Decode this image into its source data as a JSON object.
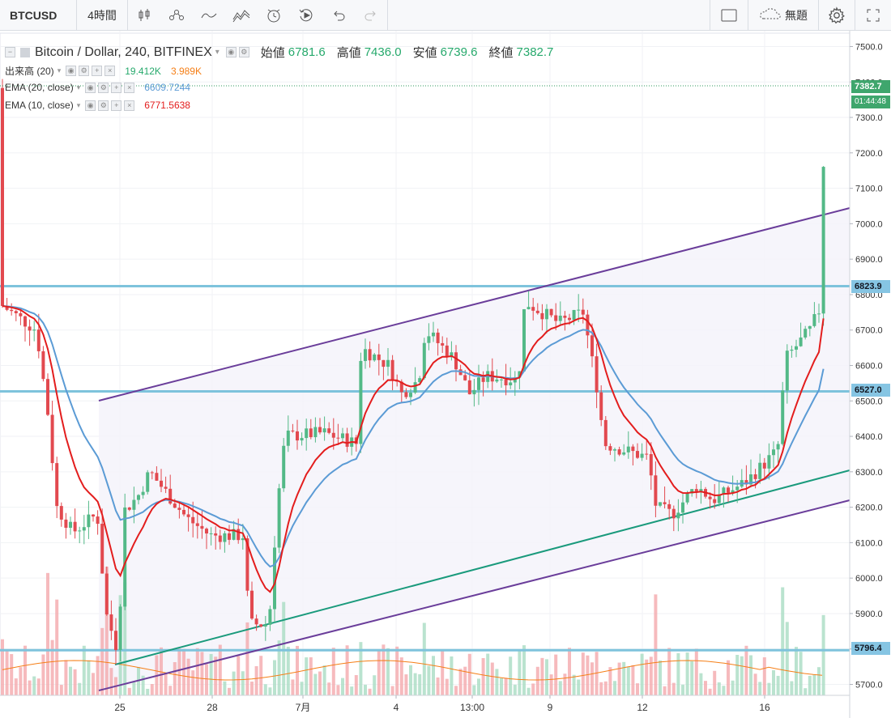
{
  "toolbar": {
    "symbol": "BTCUSD",
    "interval": "4時間",
    "icons": [
      "candles-icon",
      "indicators-icon",
      "compare-icon",
      "indicator-wave-icon",
      "alert-icon",
      "replay-icon",
      "undo-icon",
      "redo-icon"
    ],
    "layout_name": "無題",
    "right_icons": [
      "rectangle-icon",
      "cloud-icon",
      "gear-icon",
      "fullscreen-icon"
    ]
  },
  "legend": {
    "title": "Bitcoin / Dollar, 240, BITFINEX",
    "open_label": "始値",
    "open": "6781.6",
    "high_label": "高値",
    "high": "7436.0",
    "low_label": "安値",
    "low": "6739.6",
    "close_label": "終値",
    "close": "7382.7"
  },
  "indicators": [
    {
      "label": "出来高 (20)",
      "values": [
        "19.412K",
        "3.989K"
      ],
      "colors": [
        "#26a96c",
        "#f57f17"
      ]
    },
    {
      "label": "EMA (20, close)",
      "values": [
        "6609.7244"
      ],
      "colors": [
        "#5b9bd5"
      ]
    },
    {
      "label": "EMA (10, close)",
      "values": [
        "6771.5638"
      ],
      "colors": [
        "#e31d1d"
      ]
    }
  ],
  "price_axis": {
    "ticks": [
      "7500.0",
      "7400.0",
      "7300.0",
      "7200.0",
      "7100.0",
      "7000.0",
      "6900.0",
      "6800.0",
      "6700.0",
      "6600.0",
      "6500.0",
      "6400.0",
      "6300.0",
      "6200.0",
      "6100.0",
      "6000.0",
      "5900.0",
      "5800.0",
      "5700.0"
    ],
    "last_price": "7382.7",
    "countdown": "01:44:48",
    "levels": [
      "6823.9",
      "6527.0",
      "5796.4"
    ]
  },
  "time_axis": {
    "labels": [
      "25",
      "28",
      "7月",
      "4",
      "13:00",
      "9",
      "12",
      "16"
    ]
  },
  "chart_data": {
    "type": "candlestick",
    "ylim": [
      5680,
      7530
    ],
    "horizontal_levels": [
      6823.9,
      6527.0,
      5796.4
    ],
    "colors": {
      "up": "#53b987",
      "down": "#e2494f",
      "ema20": "#5b9bd5",
      "ema10": "#e31d1d",
      "channel": "#6a3d9a",
      "trend": "#1a9a7c",
      "level": "#7ec3dc"
    }
  }
}
